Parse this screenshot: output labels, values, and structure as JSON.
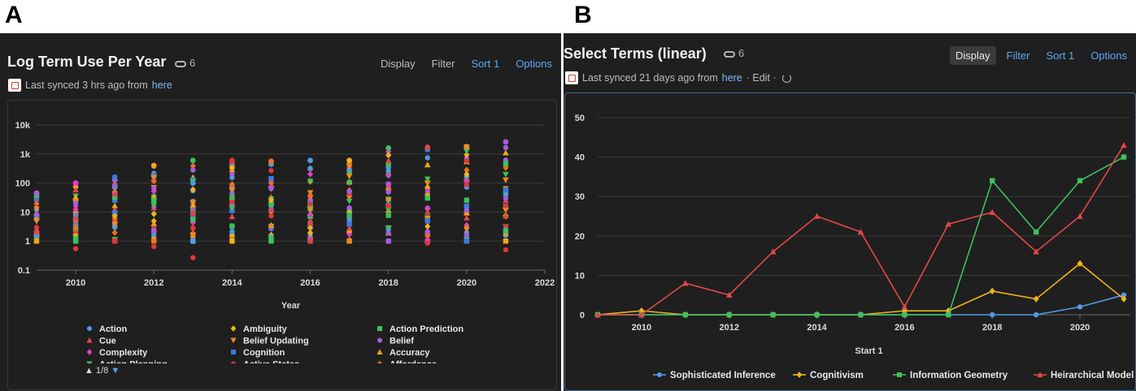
{
  "panels": {
    "a": {
      "letter": "A",
      "title": "Log Term Use Per Year",
      "link_count": "6",
      "toolbar": {
        "display": "Display",
        "filter": "Filter",
        "sort": "Sort 1",
        "options": "Options"
      },
      "sync": {
        "text": "Last synced 3 hrs ago from",
        "link": "here"
      },
      "pager": "1/8"
    },
    "b": {
      "letter": "B",
      "title": "Select Terms (linear)",
      "link_count": "6",
      "toolbar": {
        "display": "Display",
        "filter": "Filter",
        "sort": "Sort 1",
        "options": "Options"
      },
      "sync": {
        "text": "Last synced 21 days ago from",
        "link": "here",
        "edit": "· Edit ·"
      }
    }
  },
  "colors": {
    "panel_bg": "#1f1f1f",
    "accent_blue": "#5aa9f5"
  },
  "chart_data": [
    {
      "type": "scatter",
      "title": "",
      "xlabel": "Year",
      "ylabel": "",
      "y_scale": "log",
      "xlim": [
        2009,
        2022
      ],
      "ylim": [
        0.1,
        10000
      ],
      "x_ticks": [
        "2010",
        "2012",
        "2014",
        "2016",
        "2018",
        "2020",
        "2022"
      ],
      "y_ticks": [
        "0.1",
        "1",
        "10",
        "100",
        "1k",
        "10k"
      ],
      "grid": true,
      "legend_position": "bottom",
      "legend": [
        {
          "name": "Action",
          "marker": "circle",
          "color": "#4f9be8"
        },
        {
          "name": "Ambiguity",
          "marker": "diamond",
          "color": "#f0b419"
        },
        {
          "name": "Action Prediction",
          "marker": "square",
          "color": "#3cc15c"
        },
        {
          "name": "Cue",
          "marker": "triangle",
          "color": "#e04848"
        },
        {
          "name": "Belief Updating",
          "marker": "triangle-down",
          "color": "#f08a24"
        },
        {
          "name": "Belief",
          "marker": "circle",
          "color": "#a45ee0"
        },
        {
          "name": "Complexity",
          "marker": "diamond",
          "color": "#e040c8"
        },
        {
          "name": "Cognition",
          "marker": "square",
          "color": "#3a7ce0"
        },
        {
          "name": "Accuracy",
          "marker": "triangle",
          "color": "#f0a818"
        },
        {
          "name": "Action Planning",
          "marker": "triangle-down",
          "color": "#3cc15c"
        },
        {
          "name": "Active States",
          "marker": "circle",
          "color": "#e03838"
        },
        {
          "name": "Affordance",
          "marker": "diamond",
          "color": "#f07020"
        }
      ],
      "points_summary": [
        {
          "x": 2009,
          "min": 1,
          "max": 45,
          "minimum_outlier": null
        },
        {
          "x": 2010,
          "min": 1,
          "max": 100,
          "minimum_outlier": 0.55
        },
        {
          "x": 2011,
          "min": 1,
          "max": 160,
          "minimum_outlier": null
        },
        {
          "x": 2012,
          "min": 1,
          "max": 400,
          "minimum_outlier": 0.65
        },
        {
          "x": 2013,
          "min": 1,
          "max": 600,
          "minimum_outlier": 0.27
        },
        {
          "x": 2014,
          "min": 1,
          "max": 600,
          "minimum_outlier": null
        },
        {
          "x": 2015,
          "min": 1,
          "max": 560,
          "minimum_outlier": null
        },
        {
          "x": 2016,
          "min": 1,
          "max": 600,
          "minimum_outlier": null
        },
        {
          "x": 2017,
          "min": 1,
          "max": 600,
          "minimum_outlier": null
        },
        {
          "x": 2018,
          "min": 1,
          "max": 1600,
          "minimum_outlier": null
        },
        {
          "x": 2019,
          "min": 1,
          "max": 1700,
          "minimum_outlier": 0.85
        },
        {
          "x": 2020,
          "min": 1,
          "max": 1800,
          "minimum_outlier": null
        },
        {
          "x": 2021,
          "min": 1,
          "max": 2600,
          "minimum_outlier": 0.5
        }
      ]
    },
    {
      "type": "line",
      "title": "",
      "xlabel": "Start 1",
      "ylabel": "",
      "x": [
        2009,
        2010,
        2011,
        2012,
        2013,
        2014,
        2015,
        2016,
        2017,
        2018,
        2019,
        2020,
        2021
      ],
      "xlim": [
        2009,
        2021
      ],
      "ylim": [
        0,
        50
      ],
      "x_ticks": [
        "2010",
        "2012",
        "2014",
        "2016",
        "2018",
        "2020"
      ],
      "y_ticks": [
        "0",
        "10",
        "20",
        "30",
        "40",
        "50"
      ],
      "grid": true,
      "legend_position": "bottom",
      "series": [
        {
          "name": "Sophisticated Inference",
          "marker": "circle",
          "color": "#4f9be8",
          "values": [
            0,
            0,
            0,
            0,
            0,
            0,
            0,
            0,
            0,
            0,
            0,
            2,
            5
          ]
        },
        {
          "name": "Cognitivism",
          "marker": "diamond",
          "color": "#f0b419",
          "values": [
            0,
            1,
            0,
            0,
            0,
            0,
            0,
            1,
            1,
            6,
            4,
            13,
            4
          ]
        },
        {
          "name": "Information Geometry",
          "marker": "square",
          "color": "#3cc15c",
          "values": [
            0,
            0,
            0,
            0,
            0,
            0,
            0,
            0,
            0,
            34,
            21,
            34,
            40
          ]
        },
        {
          "name": "Heirarchical Model",
          "marker": "triangle",
          "color": "#e04848",
          "values": [
            0,
            0,
            8,
            5,
            16,
            25,
            21,
            2,
            23,
            26,
            16,
            25,
            43
          ]
        }
      ]
    }
  ]
}
